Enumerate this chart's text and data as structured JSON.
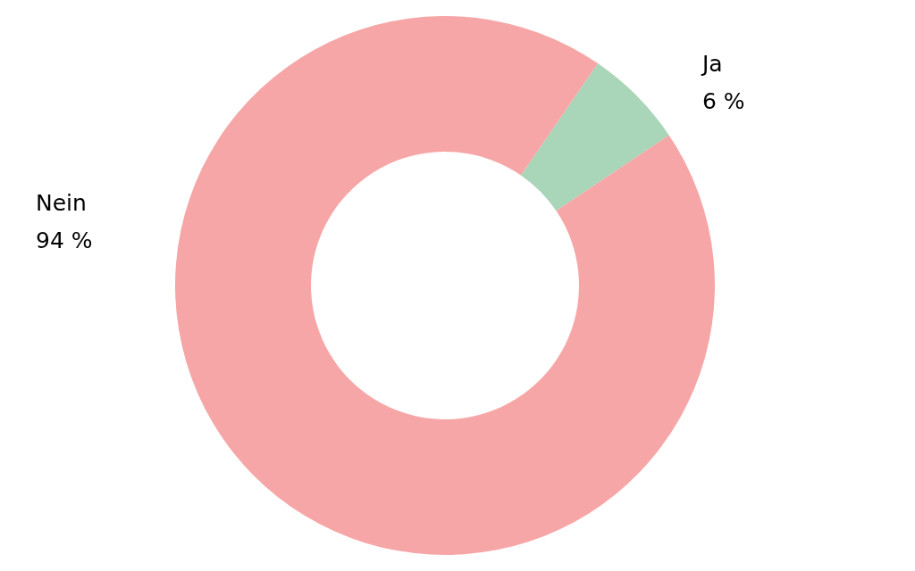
{
  "chart_data": {
    "type": "donut",
    "categories": [
      "Ja",
      "Nein"
    ],
    "values": [
      6,
      94
    ],
    "colors": [
      "#a9d5b9",
      "#f6a6a6"
    ],
    "value_labels": [
      "6 %",
      "94 %"
    ]
  }
}
